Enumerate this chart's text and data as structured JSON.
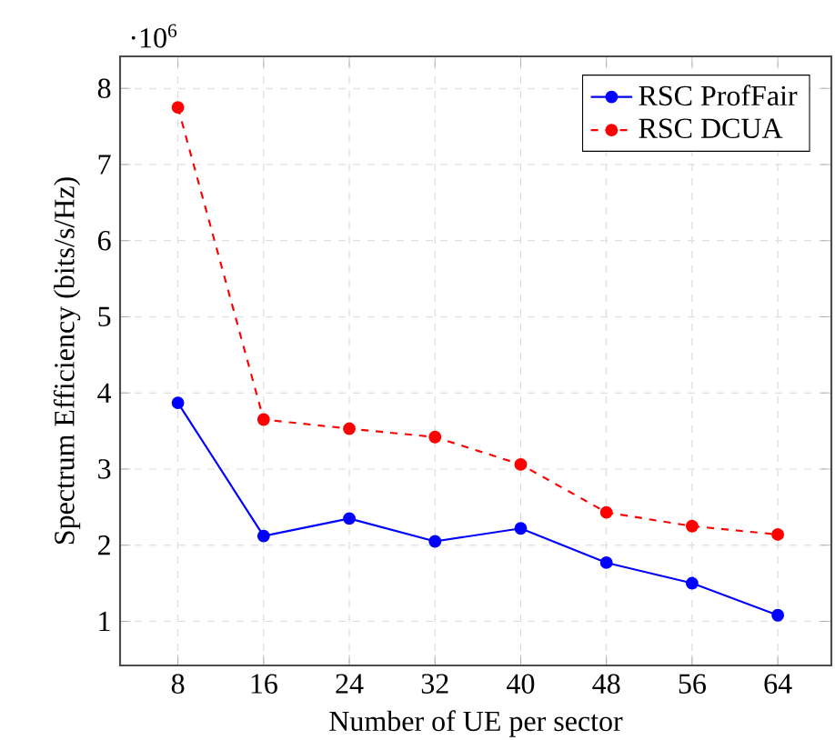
{
  "chart_data": {
    "type": "line",
    "xlabel": "Number of UE per sector",
    "ylabel": "Spectrum Efficiency (bits/s/Hz)",
    "annotations": [
      "·10$^{6}$"
    ],
    "x": [
      8,
      16,
      24,
      32,
      40,
      48,
      56,
      64
    ],
    "series": [
      {
        "name": "RSC ProfFair",
        "color": "#0000ff",
        "line_style": "solid",
        "values": [
          3.87,
          2.12,
          2.35,
          2.05,
          2.22,
          1.77,
          1.5,
          1.08
        ]
      },
      {
        "name": "RSC DCUA",
        "color": "#ff0000",
        "line_style": "dashed",
        "values": [
          7.75,
          3.65,
          3.53,
          3.42,
          3.06,
          2.43,
          2.25,
          2.14
        ]
      }
    ],
    "xlim": [
      2.6,
      69
    ],
    "ylim": [
      0.42,
      8.42
    ],
    "xticks": [
      8,
      16,
      24,
      32,
      40,
      48,
      56,
      64
    ],
    "yticks": [
      1,
      2,
      3,
      4,
      5,
      6,
      7,
      8
    ],
    "grid": true,
    "legend": "top right",
    "marker": "circle"
  }
}
